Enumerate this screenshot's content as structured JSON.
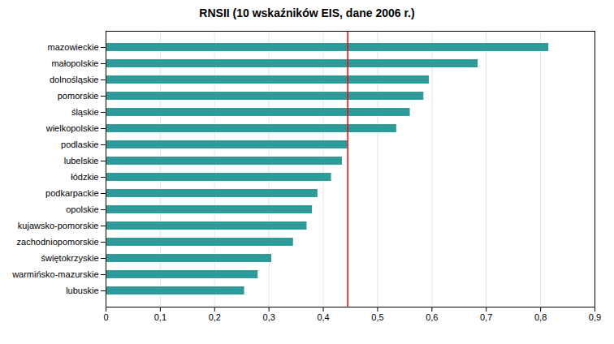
{
  "chart_data": {
    "type": "bar",
    "orientation": "horizontal",
    "title": "RNSII  (10 wskaźników EIS, dane 2006 r.)",
    "categories": [
      "mazowieckie",
      "małopolskie",
      "dolnośląskie",
      "pomorskie",
      "śląskie",
      "wielkopolskie",
      "podlaskie",
      "lubelskie",
      "łódzkie",
      "podkarpackie",
      "opolskie",
      "kujawsko-pomorskie",
      "zachodniopomorskie",
      "świętokrzyskie",
      "warmińsko-mazurskie",
      "lubuskie"
    ],
    "values": [
      0.815,
      0.685,
      0.595,
      0.585,
      0.56,
      0.535,
      0.445,
      0.435,
      0.415,
      0.39,
      0.38,
      0.37,
      0.345,
      0.305,
      0.28,
      0.255
    ],
    "color": "#2e9b9b",
    "xlim": [
      0,
      0.9
    ],
    "xticks": [
      0,
      {
        "value": 0.1,
        "label": "0,1"
      },
      {
        "value": 0.2,
        "label": "0,2"
      },
      {
        "value": 0.3,
        "label": "0,3"
      },
      {
        "value": 0.4,
        "label": "0,4"
      },
      {
        "value": 0.5,
        "label": "0,5"
      },
      {
        "value": 0.6,
        "label": "0,6"
      },
      {
        "value": 0.7,
        "label": "0,7"
      },
      {
        "value": 0.8,
        "label": "0,8"
      },
      {
        "value": 0.9,
        "label": "0,9"
      }
    ],
    "grid": true,
    "reference_line": {
      "value": 0.445,
      "color": "red"
    }
  }
}
